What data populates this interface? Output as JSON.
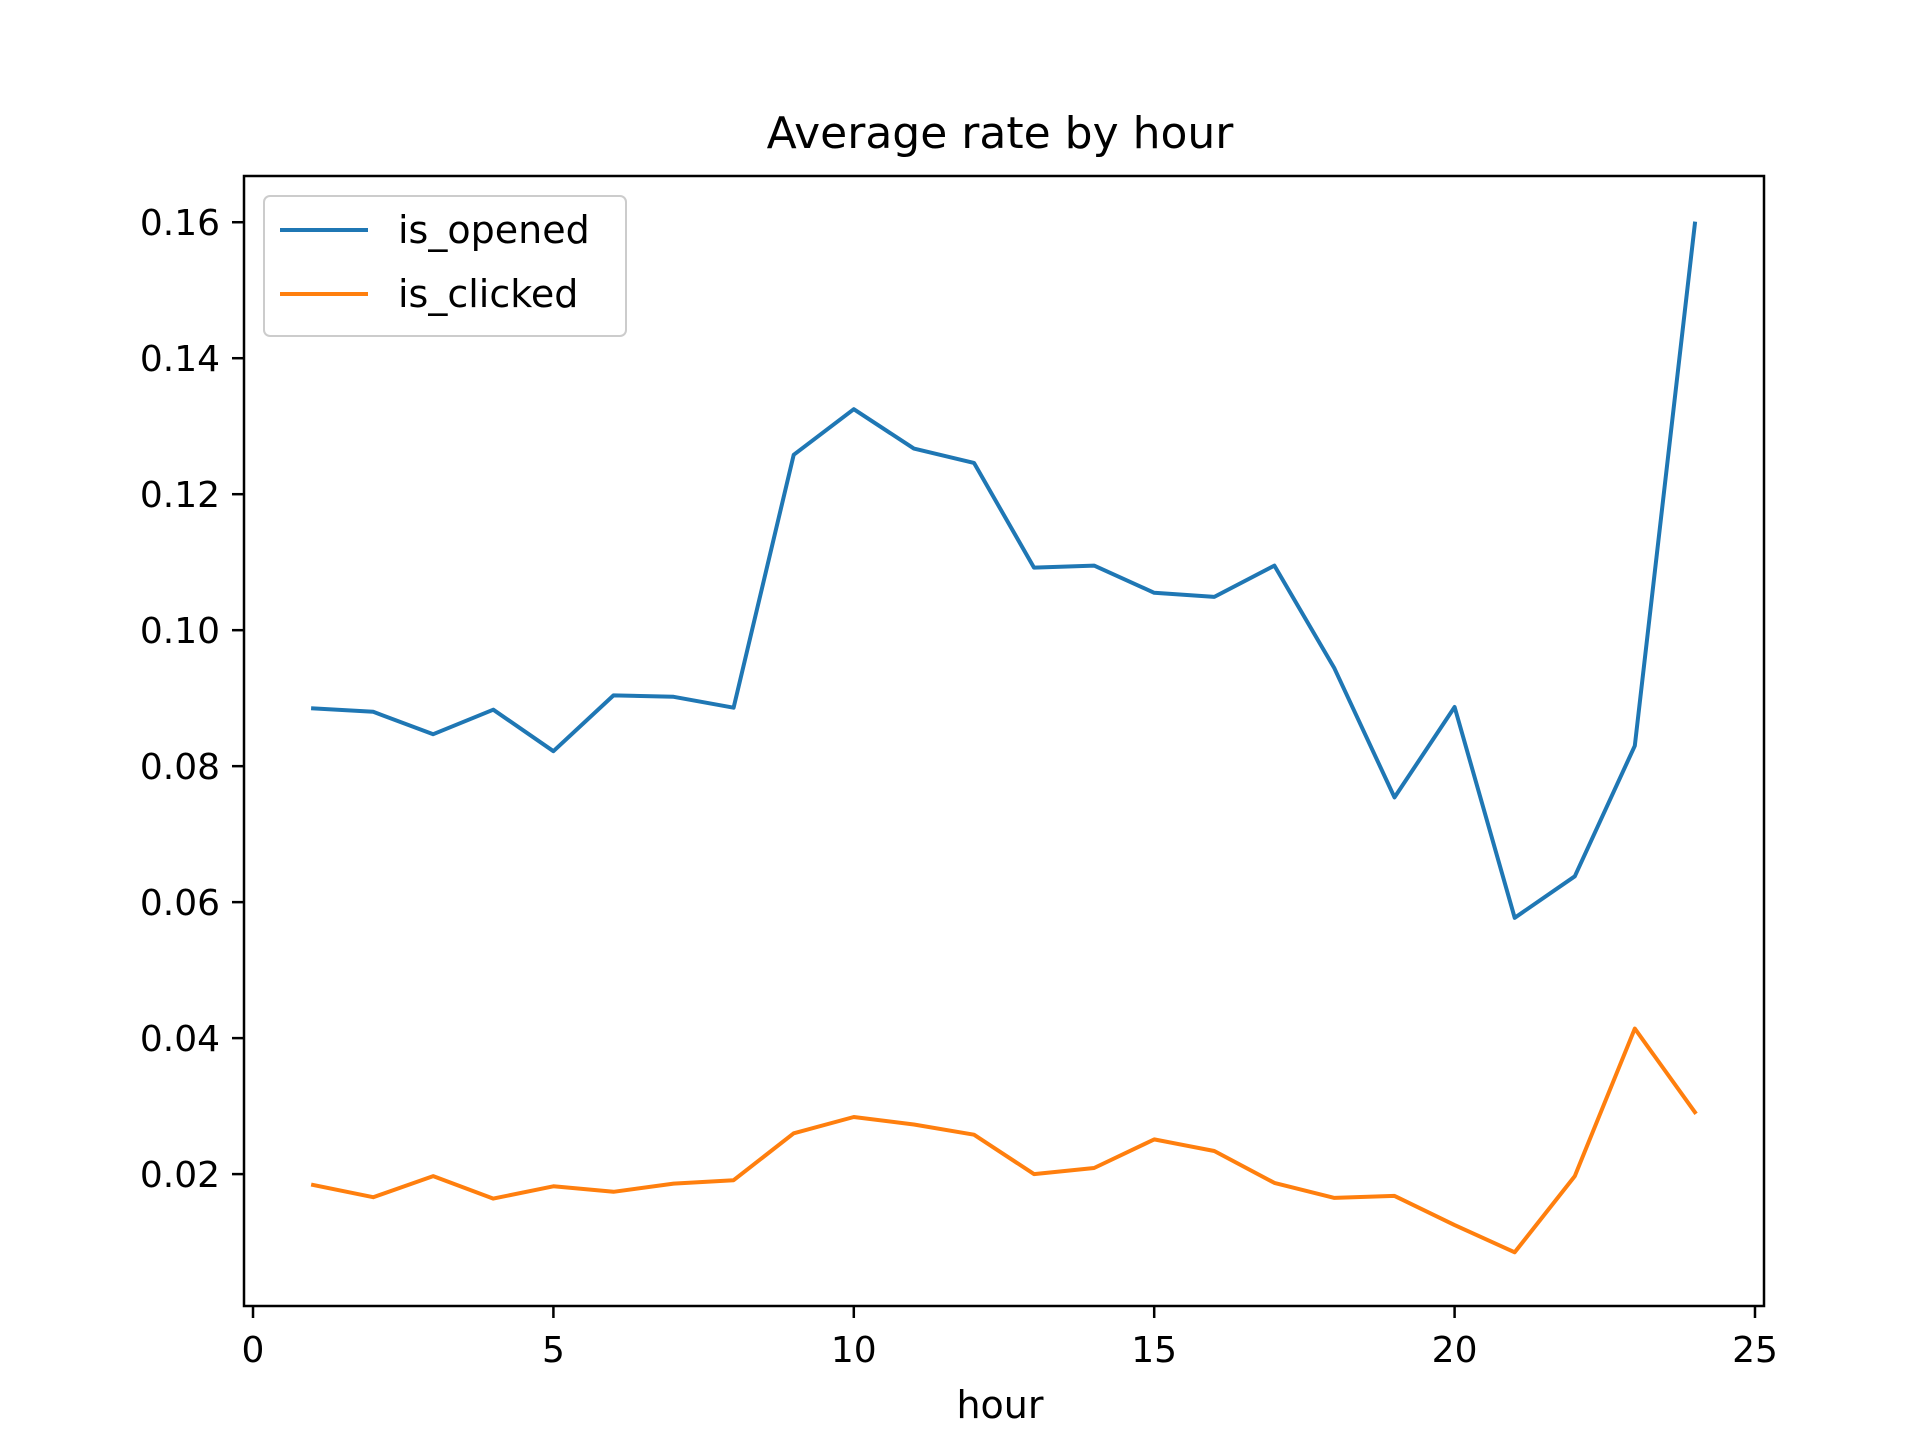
{
  "chart_data": {
    "type": "line",
    "title": "Average rate by hour",
    "xlabel": "hour",
    "ylabel": "",
    "xlim": [
      -0.15,
      25.15
    ],
    "ylim": [
      0.0006,
      0.1668
    ],
    "x_ticks": [
      {
        "value": 0,
        "label": "0"
      },
      {
        "value": 5,
        "label": "5"
      },
      {
        "value": 10,
        "label": "10"
      },
      {
        "value": 15,
        "label": "15"
      },
      {
        "value": 20,
        "label": "20"
      },
      {
        "value": 25,
        "label": "25"
      }
    ],
    "y_ticks": [
      {
        "value": 0.02,
        "label": "0.02"
      },
      {
        "value": 0.04,
        "label": "0.04"
      },
      {
        "value": 0.06,
        "label": "0.06"
      },
      {
        "value": 0.08,
        "label": "0.08"
      },
      {
        "value": 0.1,
        "label": "0.10"
      },
      {
        "value": 0.12,
        "label": "0.12"
      },
      {
        "value": 0.14,
        "label": "0.14"
      },
      {
        "value": 0.16,
        "label": "0.16"
      }
    ],
    "grid": false,
    "legend_position": "top-left",
    "x": [
      1,
      2,
      3,
      4,
      5,
      6,
      7,
      8,
      9,
      10,
      11,
      12,
      13,
      14,
      15,
      16,
      17,
      18,
      19,
      20,
      21,
      22,
      23,
      24
    ],
    "series": [
      {
        "name": "is_opened",
        "color": "#1f77b4",
        "values": [
          0.0885,
          0.088,
          0.0847,
          0.0883,
          0.0822,
          0.0904,
          0.0902,
          0.0886,
          0.1258,
          0.1325,
          0.1267,
          0.1246,
          0.1092,
          0.1095,
          0.1055,
          0.1049,
          0.1095,
          0.0944,
          0.0754,
          0.0887,
          0.0577,
          0.0638,
          0.083,
          0.1598
        ]
      },
      {
        "name": "is_clicked",
        "color": "#ff7f0e",
        "values": [
          0.0184,
          0.0166,
          0.0197,
          0.0164,
          0.0182,
          0.0174,
          0.0186,
          0.0191,
          0.026,
          0.0284,
          0.0273,
          0.0258,
          0.02,
          0.0209,
          0.0251,
          0.0234,
          0.0187,
          0.0165,
          0.0168,
          0.0125,
          0.0085,
          0.0197,
          0.0414,
          0.0291
        ]
      }
    ]
  }
}
